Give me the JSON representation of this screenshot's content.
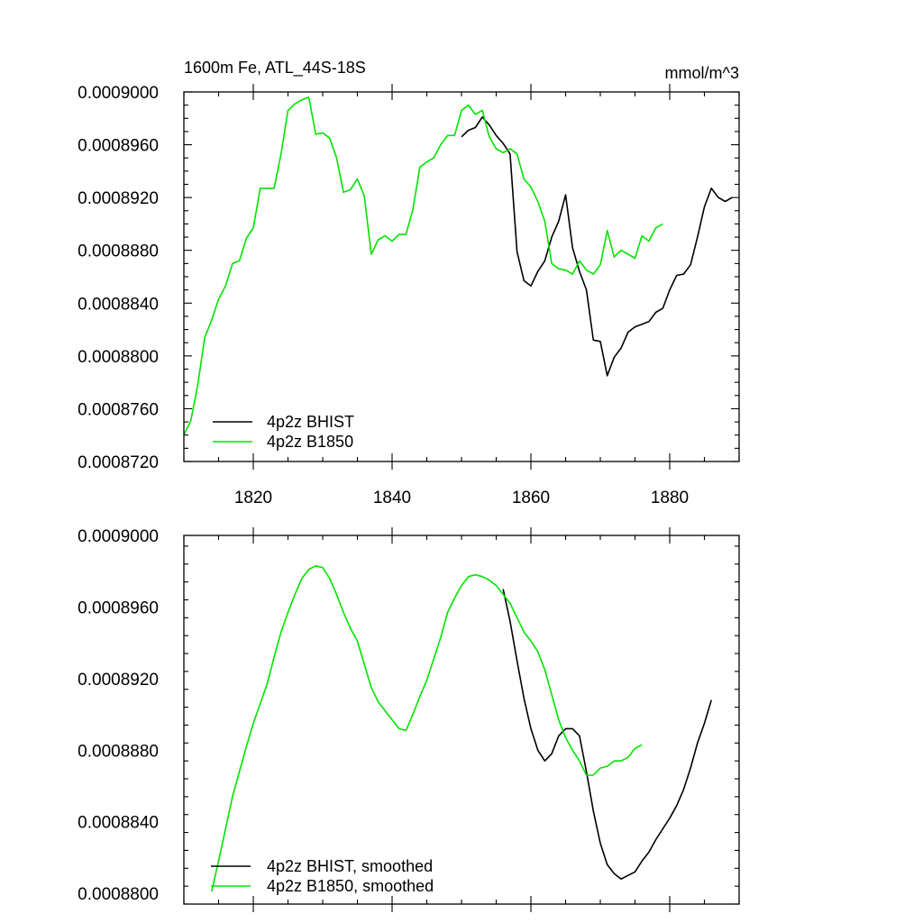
{
  "colors": {
    "bhist": "#000000",
    "b1850": "#00e400"
  },
  "chart_data": [
    {
      "type": "line",
      "title": "1600m Fe, ATL_44S-18S",
      "units": "mmol/m^3",
      "xlim": [
        1810,
        1890
      ],
      "ylim": [
        0.000872,
        0.0009
      ],
      "xticks": [
        1820,
        1840,
        1860,
        1880
      ],
      "xticklabels": [
        "1820",
        "1840",
        "1860",
        "1880"
      ],
      "yticks": [
        0.000872,
        0.000876,
        0.00088,
        0.000884,
        0.000888,
        0.000892,
        0.000896,
        0.0009
      ],
      "yticklabels": [
        "0.0008720",
        "0.0008760",
        "0.0008800",
        "0.0008840",
        "0.0008880",
        "0.0008920",
        "0.0008960",
        "0.0009000"
      ],
      "legend_location": "bottom-left",
      "series": [
        {
          "name": "4p2z BHIST",
          "color": "#000000",
          "x": [
            1850,
            1851,
            1852,
            1853,
            1854,
            1855,
            1856,
            1857,
            1858,
            1859,
            1860,
            1861,
            1862,
            1863,
            1864,
            1865,
            1866,
            1867,
            1868,
            1869,
            1870,
            1871,
            1872,
            1873,
            1874,
            1875,
            1876,
            1877,
            1878,
            1879,
            1880,
            1881,
            1882,
            1883,
            1884,
            1885,
            1886,
            1887,
            1888,
            1889
          ],
          "y": [
            0.0008966,
            0.0008971,
            0.0008973,
            0.0008981,
            0.0008975,
            0.0008967,
            0.0008961,
            0.0008953,
            0.0008879,
            0.0008857,
            0.0008853,
            0.0008864,
            0.0008872,
            0.000889,
            0.0008902,
            0.0008922,
            0.0008882,
            0.0008864,
            0.000885,
            0.0008812,
            0.0008811,
            0.0008785,
            0.0008799,
            0.0008806,
            0.0008818,
            0.0008822,
            0.0008824,
            0.0008826,
            0.0008833,
            0.0008836,
            0.000885,
            0.0008861,
            0.0008862,
            0.0008869,
            0.000889,
            0.0008913,
            0.0008927,
            0.000892,
            0.0008917,
            0.000892
          ]
        },
        {
          "name": "4p2z B1850",
          "color": "#00e400",
          "x": [
            1810,
            1811,
            1812,
            1813,
            1814,
            1815,
            1816,
            1817,
            1818,
            1819,
            1820,
            1821,
            1822,
            1823,
            1824,
            1825,
            1826,
            1827,
            1828,
            1829,
            1830,
            1831,
            1832,
            1833,
            1834,
            1835,
            1836,
            1837,
            1838,
            1839,
            1840,
            1841,
            1842,
            1843,
            1844,
            1845,
            1846,
            1847,
            1848,
            1849,
            1850,
            1851,
            1852,
            1853,
            1854,
            1855,
            1856,
            1857,
            1858,
            1859,
            1860,
            1861,
            1862,
            1863,
            1864,
            1865,
            1866,
            1867,
            1868,
            1869,
            1870,
            1871,
            1872,
            1873,
            1874,
            1875,
            1876,
            1877,
            1878,
            1879
          ],
          "y": [
            0.000874,
            0.0008751,
            0.0008778,
            0.0008814,
            0.0008827,
            0.0008843,
            0.0008853,
            0.000887,
            0.0008872,
            0.0008889,
            0.0008897,
            0.0008927,
            0.0008927,
            0.0008927,
            0.0008953,
            0.0008986,
            0.0008991,
            0.0008994,
            0.0008996,
            0.0008968,
            0.0008969,
            0.0008965,
            0.000895,
            0.0008924,
            0.0008926,
            0.0008934,
            0.0008921,
            0.0008877,
            0.0008888,
            0.0008891,
            0.0008887,
            0.0008892,
            0.0008892,
            0.0008911,
            0.0008943,
            0.0008947,
            0.000895,
            0.000896,
            0.0008967,
            0.0008967,
            0.0008986,
            0.000899,
            0.0008983,
            0.0008986,
            0.0008966,
            0.0008957,
            0.0008954,
            0.0008957,
            0.0008953,
            0.0008934,
            0.0008928,
            0.0008917,
            0.0008902,
            0.000887,
            0.0008866,
            0.0008865,
            0.0008862,
            0.0008872,
            0.0008865,
            0.0008862,
            0.0008869,
            0.0008895,
            0.0008875,
            0.000888,
            0.0008877,
            0.0008874,
            0.0008891,
            0.0008887,
            0.0008897,
            0.00089
          ]
        }
      ]
    },
    {
      "type": "line",
      "xlim": [
        1810,
        1890
      ],
      "ylim": [
        0.0008794,
        0.0009
      ],
      "xticks": [
        1820,
        1840,
        1860,
        1880
      ],
      "yticks": [
        0.00088,
        0.000884,
        0.000888,
        0.000892,
        0.000896,
        0.0009
      ],
      "yticklabels": [
        "0.0008800",
        "0.0008840",
        "0.0008880",
        "0.0008920",
        "0.0008960",
        "0.0009000"
      ],
      "legend_location": "bottom-left",
      "series": [
        {
          "name": "4p2z BHIST, smoothed",
          "color": "#000000",
          "x": [
            1856,
            1857,
            1858,
            1859,
            1860,
            1861,
            1862,
            1863,
            1864,
            1865,
            1866,
            1867,
            1868,
            1869,
            1870,
            1871,
            1872,
            1873,
            1874,
            1875,
            1876,
            1877,
            1878,
            1879,
            1880,
            1881,
            1882,
            1883,
            1884,
            1885,
            1886
          ],
          "y": [
            0.000897,
            0.0008952,
            0.000893,
            0.0008909,
            0.0008892,
            0.000888,
            0.0008874,
            0.0008878,
            0.0008888,
            0.0008892,
            0.0008892,
            0.0008888,
            0.0008868,
            0.0008846,
            0.0008828,
            0.0008816,
            0.0008811,
            0.0008808,
            0.000881,
            0.0008812,
            0.0008818,
            0.0008823,
            0.000883,
            0.0008836,
            0.0008842,
            0.0008849,
            0.0008858,
            0.000887,
            0.0008884,
            0.0008895,
            0.0008908
          ]
        },
        {
          "name": "4p2z B1850, smoothed",
          "color": "#00e400",
          "x": [
            1814,
            1815,
            1816,
            1817,
            1818,
            1819,
            1820,
            1821,
            1822,
            1823,
            1824,
            1825,
            1826,
            1827,
            1828,
            1829,
            1830,
            1831,
            1832,
            1833,
            1834,
            1835,
            1836,
            1837,
            1838,
            1839,
            1840,
            1841,
            1842,
            1843,
            1844,
            1845,
            1846,
            1847,
            1848,
            1849,
            1850,
            1851,
            1852,
            1853,
            1854,
            1855,
            1856,
            1857,
            1858,
            1859,
            1860,
            1861,
            1862,
            1863,
            1864,
            1865,
            1866,
            1867,
            1868,
            1869,
            1870,
            1871,
            1872,
            1873,
            1874,
            1875,
            1876
          ],
          "y": [
            0.0008801,
            0.0008818,
            0.0008836,
            0.0008854,
            0.0008868,
            0.0008882,
            0.0008895,
            0.0008906,
            0.0008917,
            0.0008932,
            0.0008946,
            0.0008957,
            0.0008967,
            0.0008976,
            0.0008981,
            0.0008983,
            0.0008982,
            0.0008976,
            0.0008967,
            0.0008957,
            0.0008948,
            0.0008941,
            0.0008928,
            0.0008915,
            0.0008907,
            0.0008902,
            0.0008897,
            0.0008892,
            0.0008891,
            0.00089,
            0.000891,
            0.0008919,
            0.0008931,
            0.0008943,
            0.0008957,
            0.0008965,
            0.0008972,
            0.0008977,
            0.0008978,
            0.0008977,
            0.0008975,
            0.0008972,
            0.0008967,
            0.0008962,
            0.0008954,
            0.0008946,
            0.0008941,
            0.0008935,
            0.0008925,
            0.0008911,
            0.0008897,
            0.0008887,
            0.000888,
            0.0008874,
            0.0008866,
            0.0008866,
            0.000887,
            0.0008871,
            0.0008874,
            0.0008874,
            0.0008876,
            0.0008881,
            0.0008883
          ]
        }
      ]
    }
  ]
}
